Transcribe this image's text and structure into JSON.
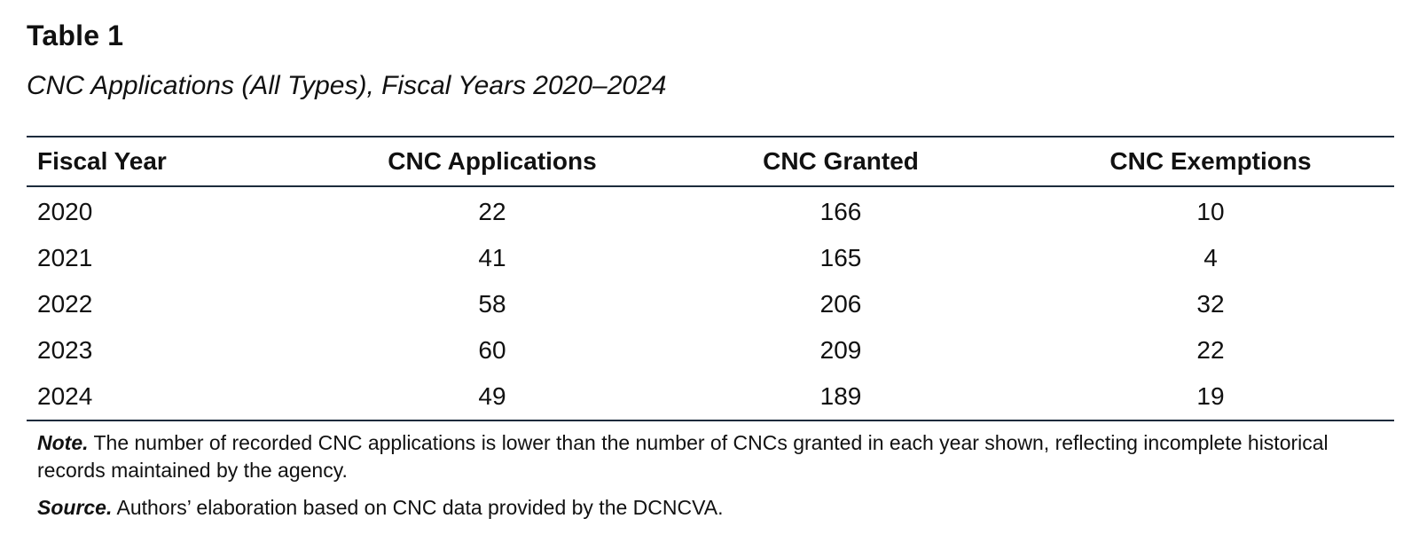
{
  "table": {
    "label": "Table 1",
    "caption": "CNC Applications (All Types), Fiscal Years 2020–2024",
    "headers": [
      "Fiscal Year",
      "CNC Applications",
      "CNC Granted",
      "CNC Exemptions"
    ],
    "rows": [
      [
        "2020",
        "22",
        "166",
        "10"
      ],
      [
        "2021",
        "41",
        "165",
        "4"
      ],
      [
        "2022",
        "58",
        "206",
        "32"
      ],
      [
        "2023",
        "60",
        "209",
        "22"
      ],
      [
        "2024",
        "49",
        "189",
        "19"
      ]
    ]
  },
  "note": {
    "lead": "Note.",
    "text": " The number of recorded CNC applications is lower than the number of CNCs granted in each year shown, reflecting incomplete historical records maintained by the agency."
  },
  "source": {
    "lead": "Source.",
    "text": " Authors’ elaboration based on CNC data provided by the DCNCVA."
  }
}
